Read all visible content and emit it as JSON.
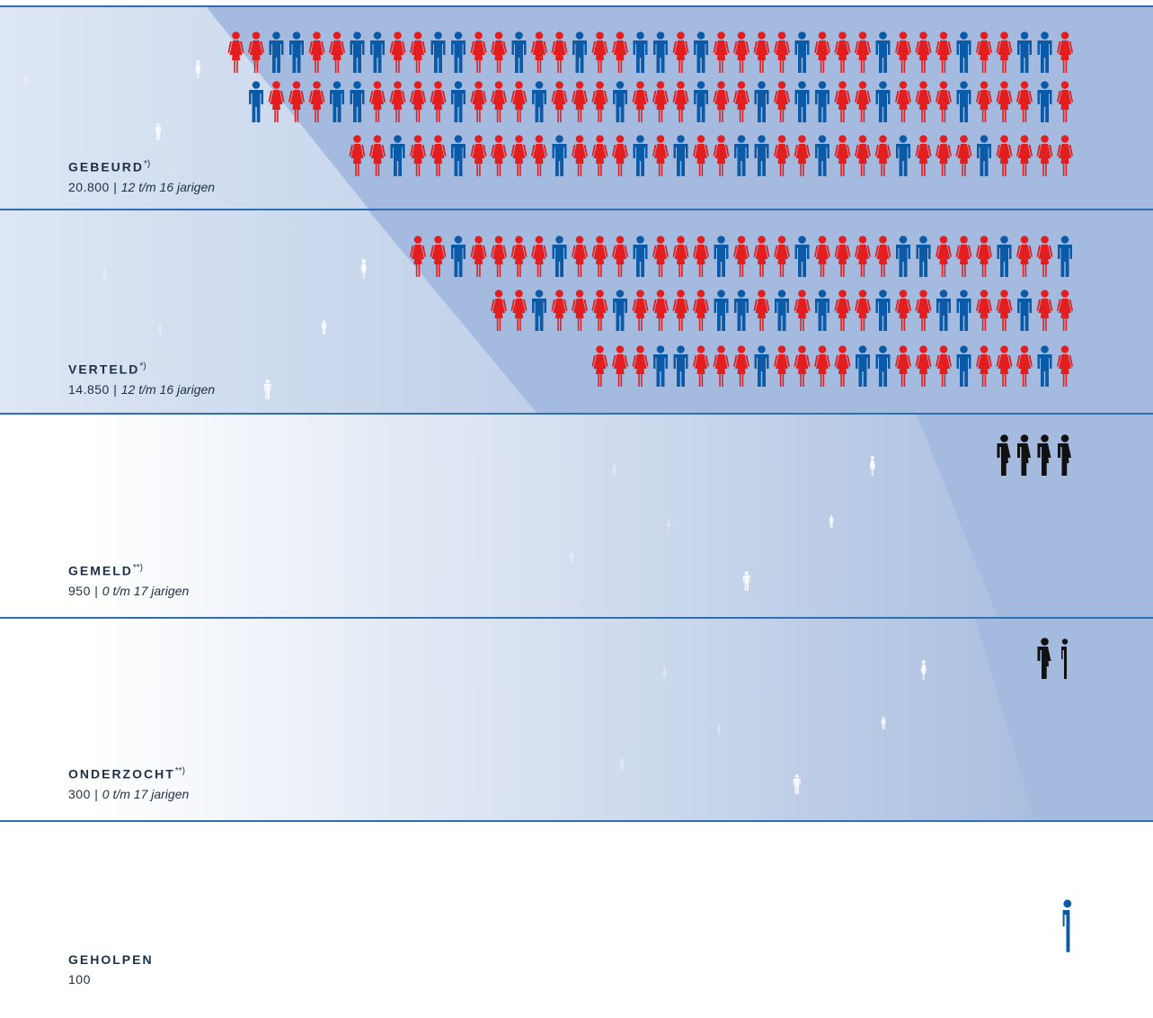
{
  "chart_data": {
    "type": "isotype",
    "stages": [
      {
        "id": "gebeurd",
        "name": "GEBEURD",
        "footnote": "*)",
        "count": "20.800",
        "range": "12 t/m 16 jarigen",
        "rows": [
          "FFMMFFMMFFMMFFMFFMFFMMFMFFFFMFFFMFFFMFFMMF",
          "MFFFMMFFFFMFFFMFFFMFFFMFFMFMMFFMFFFMFFFMF",
          "FFMFFMFFFFMFFFMFMFFMMFFMFFFMFFFMFFFF"
        ]
      },
      {
        "id": "verteld",
        "name": "VERTELD",
        "footnote": "*)",
        "count": "14.850",
        "range": "12 t/m 16 jarigen",
        "rows": [
          "FFMFFFFMFFFMFFFMFFFMFFFFMMFFFMFFM",
          "FFMFFFMFFFFMMFMFMFFMFFMMFFMFF",
          "FFFMMFFFMFFFFMMFFFMFFFMF"
        ]
      },
      {
        "id": "gemeld",
        "name": "GEMELD",
        "footnote": "**)",
        "count": "950",
        "range": "0 t/m 17 jarigen",
        "rows": [
          "PPPP"
        ]
      },
      {
        "id": "onderzocht",
        "name": "ONDERZOCHT",
        "footnote": "**)",
        "count": "300",
        "range": "0 t/m 17 jarigen",
        "rows": [
          "PH"
        ]
      },
      {
        "id": "geholpen",
        "name": "GEHOLPEN",
        "footnote": "",
        "count": "100",
        "range": "",
        "rows": [
          "Q"
        ]
      }
    ]
  },
  "colors": {
    "female": "#e41e1e",
    "male": "#0a5aa8",
    "mixed": "#111111",
    "geholpen": "#0a5aa8",
    "band_dark": "#a4bbdf",
    "band_light": "#dde6f4",
    "separator": "#2e6eb5",
    "text": "#1d2f45"
  }
}
